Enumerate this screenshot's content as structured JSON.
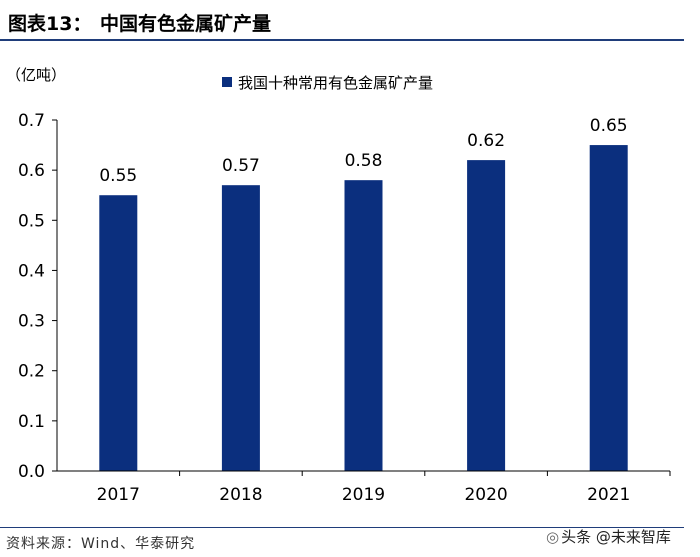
{
  "figure": {
    "label": "图表13：",
    "title": "中国有色金属矿产量"
  },
  "chart_data": {
    "type": "bar",
    "categories": [
      "2017",
      "2018",
      "2019",
      "2020",
      "2021"
    ],
    "series": [
      {
        "name": "我国十种常用有色金属矿产量",
        "values": [
          0.55,
          0.57,
          0.58,
          0.62,
          0.65
        ],
        "value_labels": [
          "0.55",
          "0.57",
          "0.58",
          "0.62",
          "0.65"
        ]
      }
    ],
    "ylabel": "（亿吨）",
    "xlabel": "",
    "ylim": [
      0,
      0.7
    ],
    "yticks": [
      0.0,
      0.1,
      0.2,
      0.3,
      0.4,
      0.5,
      0.6,
      0.7
    ],
    "ytick_labels": [
      "0.0",
      "0.1",
      "0.2",
      "0.3",
      "0.4",
      "0.5",
      "0.6",
      "0.7"
    ],
    "legend_position": "top",
    "grid": false,
    "bar_color": "#0b2f7e"
  },
  "footer": {
    "source": "资料来源：Wind、华泰研究",
    "watermark": "头条 @未来智库"
  },
  "colors": {
    "accent": "#1f3d7a",
    "bar": "#0b2f7e"
  }
}
